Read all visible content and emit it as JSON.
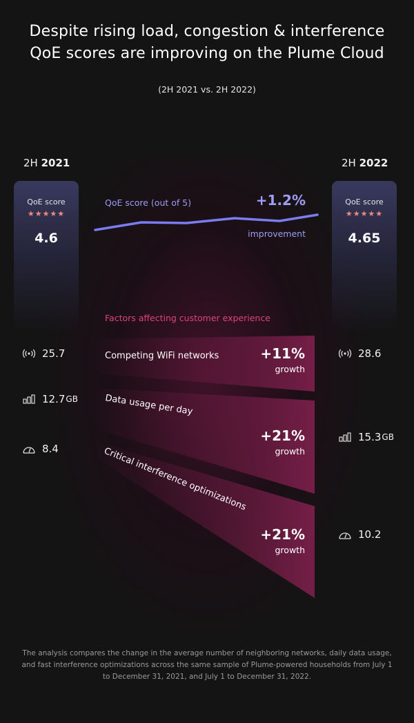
{
  "header": {
    "title_line1": "Despite rising load, congestion & interference",
    "title_line2": "QoE scores are improving on the Plume Cloud",
    "subtitle": "(2H 2021 vs. 2H 2022)"
  },
  "periods": {
    "left_prefix": "2H",
    "left_year": "2021",
    "right_prefix": "2H",
    "right_year": "2022"
  },
  "qoe": {
    "label": "QoE score",
    "stars": "★★★★★",
    "left_score": "4.6",
    "right_score": "4.65",
    "line_label": "QoE score (out of 5)",
    "change": "+1.2%",
    "change_label": "improvement"
  },
  "factors_title": "Factors affecting customer experience",
  "factors": [
    {
      "label": "Competing WiFi networks",
      "change": "+11%",
      "change_label": "growth",
      "left_value": "25.7",
      "left_unit": "",
      "right_value": "28.6",
      "right_unit": ""
    },
    {
      "label": "Data usage per day",
      "change": "+21%",
      "change_label": "growth",
      "left_value": "12.7",
      "left_unit": "GB",
      "right_value": "15.3",
      "right_unit": "GB"
    },
    {
      "label": "Critical interference optimizations",
      "change": "+21%",
      "change_label": "growth",
      "left_value": "8.4",
      "left_unit": "",
      "right_value": "10.2",
      "right_unit": ""
    }
  ],
  "footnote": "The analysis compares the change in the average number of neighboring networks, daily data usage, and fast interference optimizations across the same sample of Plume-powered households from July 1 to December 31, 2021, and July 1 to December 31, 2022.",
  "colors": {
    "background": "#141414",
    "line": "#7c7cf2",
    "accent_pink": "#e0427c",
    "star": "#f08a7d",
    "qoe_text": "#9d9df5"
  },
  "chart_data": {
    "type": "line",
    "series": [
      {
        "name": "QoE score (out of 5)",
        "x": [
          "2H 2021",
          "2H 2022"
        ],
        "values": [
          4.6,
          4.65
        ]
      }
    ],
    "change_percent": 1.2,
    "factors": [
      {
        "name": "Competing WiFi networks",
        "2H 2021": 25.7,
        "2H 2022": 28.6,
        "growth_percent": 11
      },
      {
        "name": "Data usage per day",
        "unit": "GB",
        "2H 2021": 12.7,
        "2H 2022": 15.3,
        "growth_percent": 21
      },
      {
        "name": "Critical interference optimizations",
        "2H 2021": 8.4,
        "2H 2022": 10.2,
        "growth_percent": 21
      }
    ]
  }
}
